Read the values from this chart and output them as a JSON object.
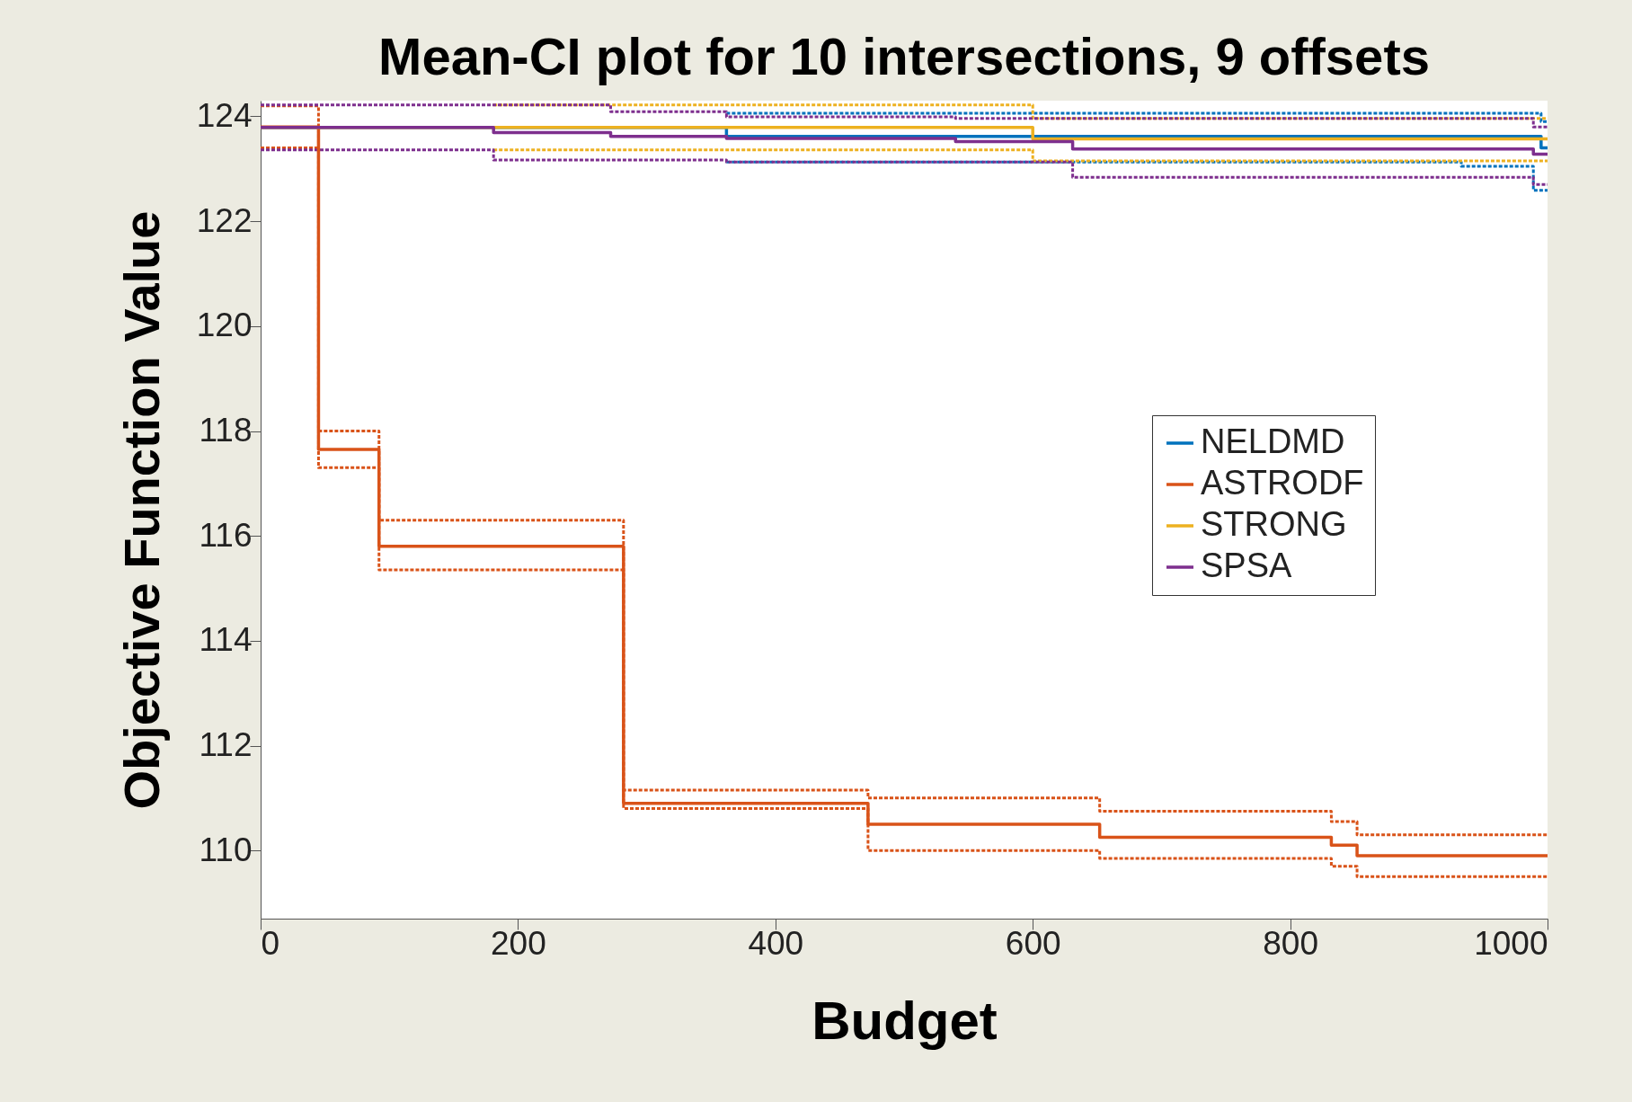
{
  "chart_data": {
    "type": "step",
    "title": "Mean-CI plot for 10 intersections, 9 offsets",
    "xlabel": "Budget",
    "ylabel": "Objective Function Value",
    "xlim": [
      0,
      1000
    ],
    "ylim": [
      108.7,
      124.3
    ],
    "xticks": [
      0,
      200,
      400,
      600,
      800,
      1000
    ],
    "yticks": [
      110,
      112,
      114,
      116,
      118,
      120,
      122,
      124
    ],
    "grid": false,
    "legend": "right",
    "series": [
      {
        "color": "#0072bd",
        "line_style": "dotted",
        "x": [
          362,
          995,
          1000
        ],
        "values": [
          124.06,
          123.9,
          123.9
        ]
      },
      {
        "color": "#0072bd",
        "line_style": "dotted",
        "x": [
          362,
          933,
          989,
          1000
        ],
        "values": [
          123.13,
          123.05,
          122.59,
          122.59
        ]
      },
      {
        "color": "#d95319",
        "line_style": "dotted",
        "x": [
          0,
          45,
          92,
          282,
          472,
          652,
          832,
          852,
          1000
        ],
        "values": [
          124.2,
          118.0,
          116.3,
          111.15,
          111.0,
          110.75,
          110.55,
          110.3,
          110.3
        ]
      },
      {
        "color": "#d95319",
        "line_style": "dotted",
        "x": [
          0,
          45,
          92,
          282,
          472,
          652,
          832,
          852,
          1000
        ],
        "values": [
          123.4,
          117.3,
          115.35,
          110.8,
          110.0,
          109.85,
          109.7,
          109.5,
          109.5
        ]
      },
      {
        "color": "#edb120",
        "line_style": "dotted",
        "x": [
          181,
          600,
          1000
        ],
        "values": [
          124.22,
          123.96,
          123.96
        ]
      },
      {
        "color": "#edb120",
        "line_style": "dotted",
        "x": [
          181,
          600,
          1000
        ],
        "values": [
          123.36,
          123.15,
          123.15
        ]
      },
      {
        "color": "#7e2f8e",
        "line_style": "dotted",
        "x": [
          0,
          272,
          362,
          540,
          989,
          1000
        ],
        "values": [
          124.22,
          124.09,
          123.99,
          123.96,
          123.8,
          123.8
        ]
      },
      {
        "color": "#7e2f8e",
        "line_style": "dotted",
        "x": [
          0,
          181,
          362,
          631,
          989,
          1000
        ],
        "values": [
          123.36,
          123.17,
          123.13,
          122.84,
          122.7,
          122.7
        ]
      },
      {
        "name": "NELDMD",
        "color": "#0072bd",
        "line_style": "solid",
        "x": [
          0,
          362,
          995,
          1000
        ],
        "values": [
          123.79,
          123.62,
          123.4,
          123.4
        ]
      },
      {
        "name": "ASTRODF",
        "color": "#d95319",
        "line_style": "solid",
        "x": [
          0,
          45,
          92,
          282,
          472,
          652,
          832,
          852,
          1000
        ],
        "values": [
          123.8,
          117.65,
          115.8,
          110.9,
          110.5,
          110.25,
          110.1,
          109.9,
          109.9
        ]
      },
      {
        "name": "STRONG",
        "color": "#edb120",
        "line_style": "solid",
        "x": [
          0,
          600,
          1000
        ],
        "values": [
          123.79,
          123.57,
          123.57
        ]
      },
      {
        "name": "SPSA",
        "color": "#7e2f8e",
        "line_style": "solid",
        "x": [
          0,
          181,
          272,
          362,
          540,
          631,
          989,
          1000
        ],
        "values": [
          123.79,
          123.69,
          123.62,
          123.58,
          123.52,
          123.38,
          123.28,
          123.28
        ]
      }
    ]
  }
}
